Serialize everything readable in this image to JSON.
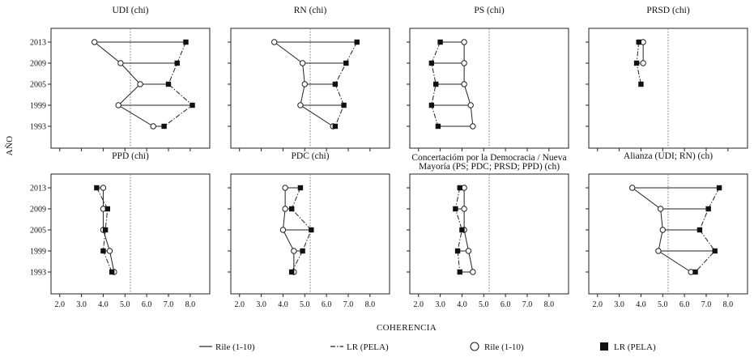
{
  "chart_data": {
    "type": "scatter",
    "xlabel": "COHERENCIA",
    "ylabel": "AÑO",
    "x_ticks": [
      "2.0",
      "3.0",
      "4.0",
      "5.0",
      "6.0",
      "7.0",
      "8.0"
    ],
    "y_ticks": [
      "2013",
      "2009",
      "2005",
      "1999",
      "1993"
    ],
    "xlim": [
      1.6,
      8.9
    ],
    "reference_line_x": 5.25,
    "grid": false,
    "legend_position": "bottom",
    "legend": [
      {
        "label": "Rile (1-10)",
        "symbol": "solid-line"
      },
      {
        "label": "LR (PELA)",
        "symbol": "dash-dot-line"
      },
      {
        "label": "Rile (1-10)",
        "symbol": "open-circle"
      },
      {
        "label": "LR (PELA)",
        "symbol": "filled-square"
      }
    ],
    "panels": [
      {
        "title": "UDI (chi)",
        "years": [
          "2013",
          "2009",
          "2005",
          "1999",
          "1993"
        ],
        "rile": [
          3.6,
          4.8,
          5.7,
          4.7,
          6.3
        ],
        "lr": [
          7.8,
          7.4,
          7.0,
          8.1,
          6.8
        ]
      },
      {
        "title": "RN (chi)",
        "years": [
          "2013",
          "2009",
          "2005",
          "1999",
          "1993"
        ],
        "rile": [
          3.6,
          4.9,
          5.0,
          4.8,
          6.3
        ],
        "lr": [
          7.4,
          6.9,
          6.4,
          6.8,
          6.4
        ]
      },
      {
        "title": "PS (chi)",
        "years": [
          "2013",
          "2009",
          "2005",
          "1999",
          "1993"
        ],
        "rile": [
          4.1,
          4.1,
          4.1,
          4.4,
          4.5
        ],
        "lr": [
          3.0,
          2.6,
          2.8,
          2.6,
          2.9
        ]
      },
      {
        "title": "PRSD (chi)",
        "years": [
          "2013",
          "2009",
          "2005"
        ],
        "rile": [
          4.1,
          4.1,
          null
        ],
        "lr": [
          3.9,
          3.8,
          4.0
        ]
      },
      {
        "title": "PPD (chi)",
        "years": [
          "2013",
          "2009",
          "2005",
          "1999",
          "1993"
        ],
        "rile": [
          4.0,
          4.0,
          4.0,
          4.3,
          4.5
        ],
        "lr": [
          3.7,
          4.2,
          4.1,
          4.0,
          4.4
        ]
      },
      {
        "title": "PDC (chi)",
        "years": [
          "2013",
          "2009",
          "2005",
          "1999",
          "1993"
        ],
        "rile": [
          4.1,
          4.1,
          4.0,
          4.5,
          4.5
        ],
        "lr": [
          4.8,
          4.4,
          5.3,
          4.9,
          4.4
        ]
      },
      {
        "title_lines": [
          "Concertacióm por la Democracia / Nueva",
          "Mayoría  (PS; PDC; PRSD; PPD) (ch)"
        ],
        "years": [
          "2013",
          "2009",
          "2005",
          "1999",
          "1993"
        ],
        "rile": [
          4.1,
          4.1,
          4.1,
          4.3,
          4.5
        ],
        "lr": [
          3.9,
          3.7,
          4.0,
          3.8,
          3.9
        ]
      },
      {
        "title": "Alianza (UDI; RN) (ch)",
        "years": [
          "2013",
          "2009",
          "2005",
          "1999",
          "1993"
        ],
        "rile": [
          3.6,
          4.9,
          5.0,
          4.8,
          6.3
        ],
        "lr": [
          7.6,
          7.1,
          6.7,
          7.4,
          6.5
        ]
      }
    ]
  }
}
